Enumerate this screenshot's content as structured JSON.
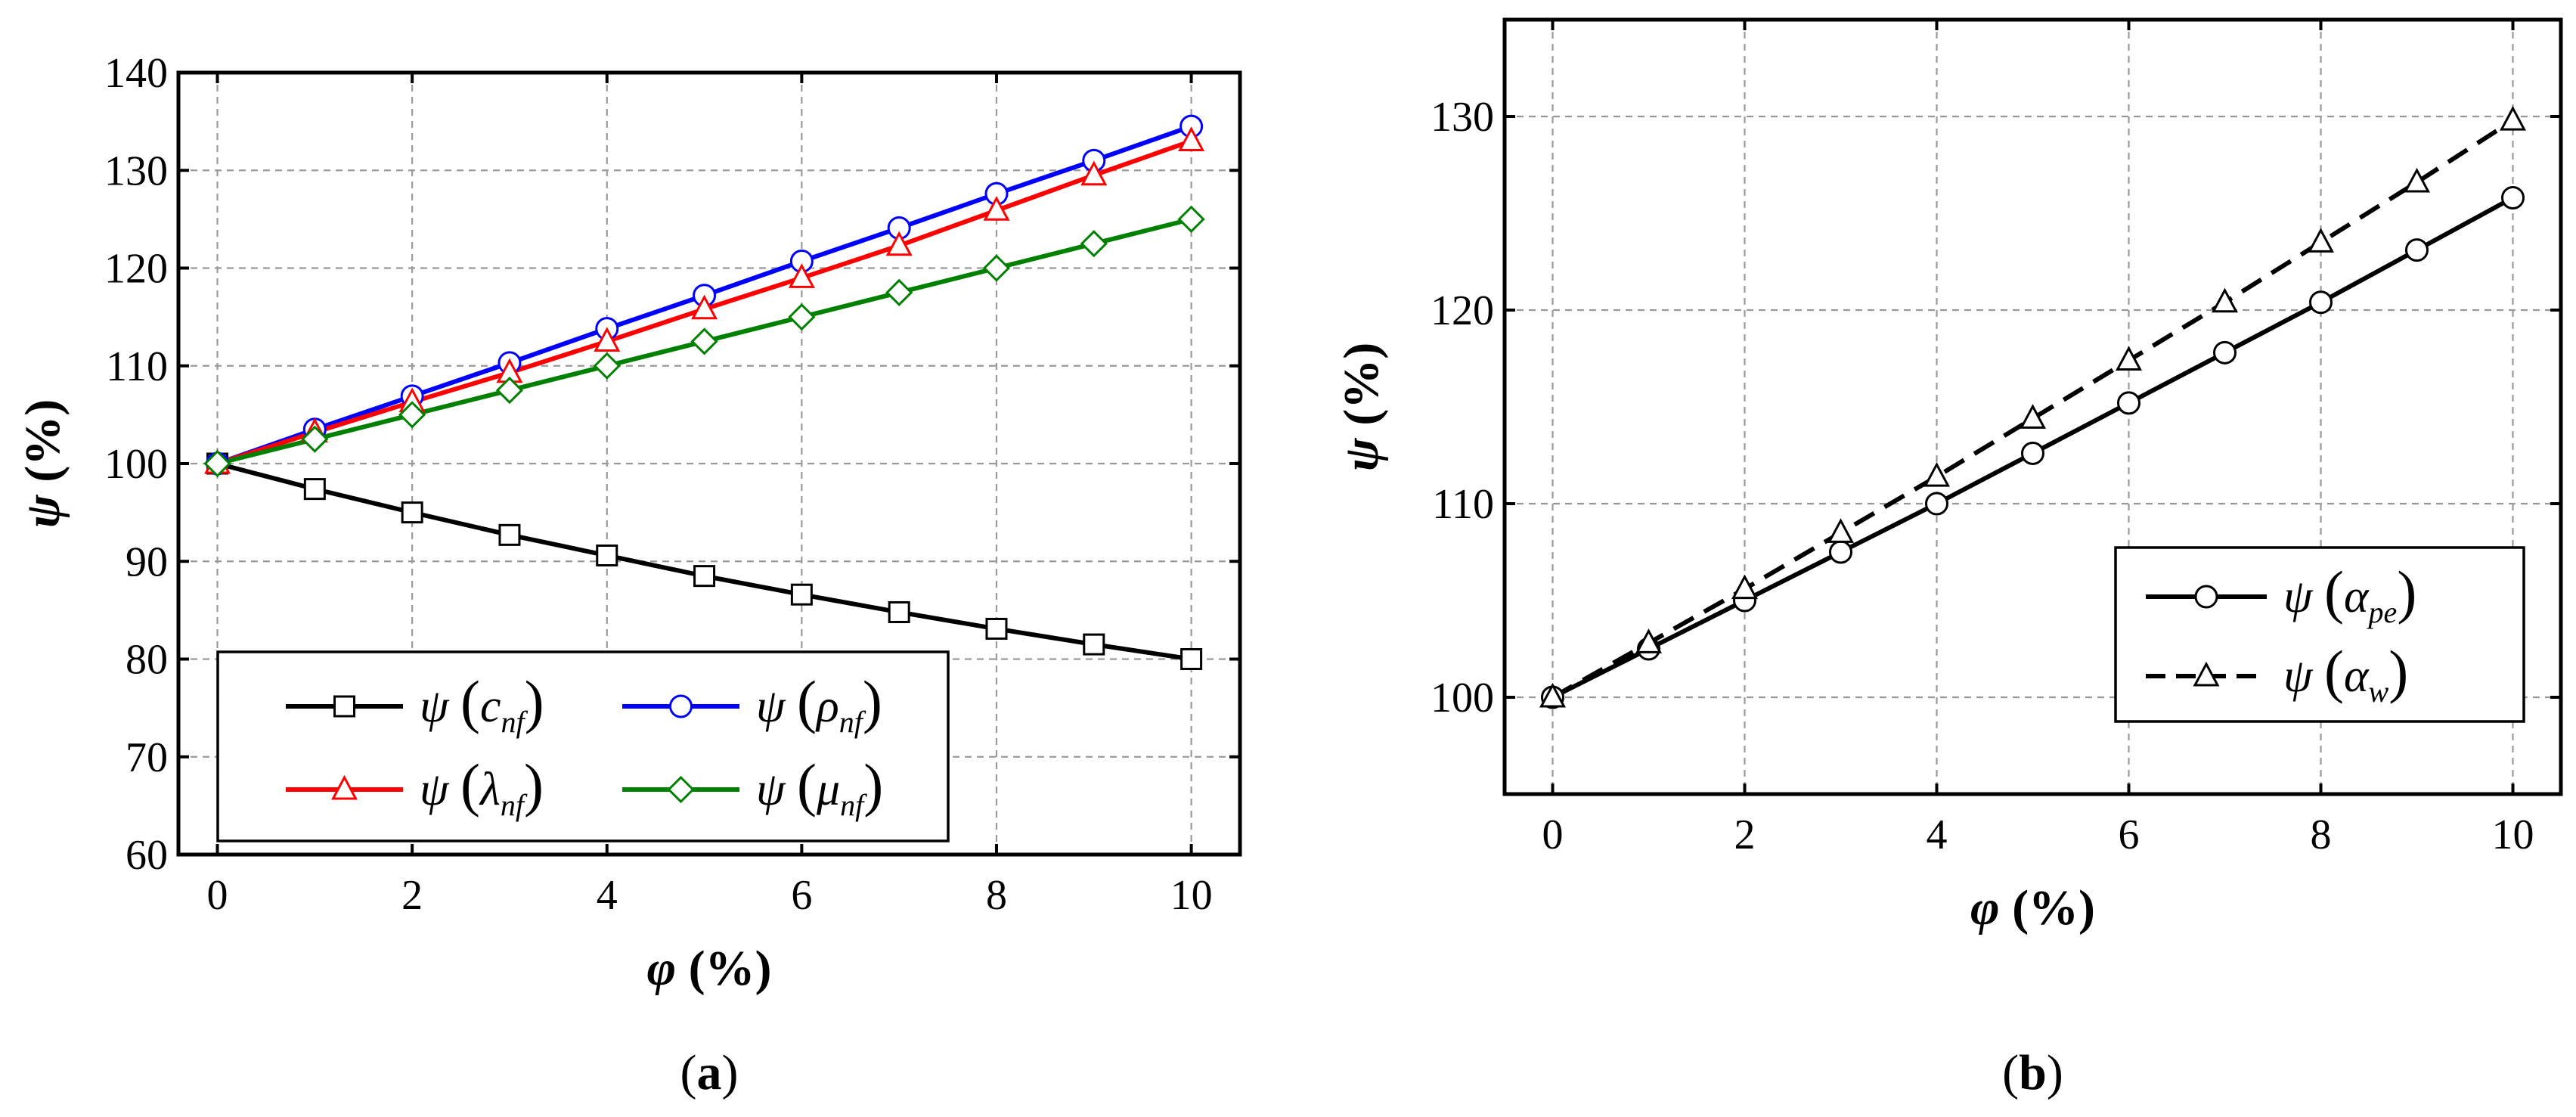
{
  "chart_data": [
    {
      "type": "line",
      "panel_label": "(a)",
      "panel_label_letter": "a",
      "xlabel": "φ",
      "xlabel_unit": "(%)",
      "ylabel": "ψ",
      "ylabel_unit": "(%)",
      "xlim": [
        -0.4,
        10.5
      ],
      "ylim": [
        60,
        140
      ],
      "x_ticks": [
        0,
        2,
        4,
        6,
        8,
        10
      ],
      "y_ticks": [
        60,
        70,
        80,
        90,
        100,
        110,
        120,
        130,
        140
      ],
      "grid": true,
      "legend_position": "bottom-left",
      "x": [
        0,
        1,
        2,
        3,
        4,
        5,
        6,
        7,
        8,
        9,
        10
      ],
      "series": [
        {
          "name": "ψ(c_nf)",
          "func": "ψ",
          "symbol": "c",
          "sub": "nf",
          "color": "#000000",
          "marker": "square",
          "values": [
            100,
            97.4,
            95.0,
            92.7,
            90.6,
            88.5,
            86.6,
            84.8,
            83.1,
            81.5,
            80.0
          ]
        },
        {
          "name": "ψ(ρ_nf)",
          "func": "ψ",
          "symbol": "ρ",
          "sub": "nf",
          "color": "#0000ff",
          "marker": "circle",
          "values": [
            100,
            103.5,
            106.9,
            110.3,
            113.8,
            117.2,
            120.7,
            124.1,
            127.6,
            131.0,
            134.5
          ]
        },
        {
          "name": "ψ(λ_nf)",
          "func": "ψ",
          "symbol": "λ",
          "sub": "nf",
          "color": "#ff0000",
          "marker": "triangle",
          "values": [
            100,
            103.2,
            106.3,
            109.3,
            112.5,
            115.8,
            119.0,
            122.3,
            125.9,
            129.5,
            133.0
          ]
        },
        {
          "name": "ψ(μ_nf)",
          "func": "ψ",
          "symbol": "μ",
          "sub": "nf",
          "color": "#008000",
          "marker": "diamond",
          "values": [
            100,
            102.5,
            105.0,
            107.5,
            110.0,
            112.5,
            115.0,
            117.5,
            120.0,
            122.5,
            125.0
          ]
        }
      ]
    },
    {
      "type": "line",
      "panel_label": "(b)",
      "panel_label_letter": "b",
      "xlabel": "φ",
      "xlabel_unit": "(%)",
      "ylabel": "ψ",
      "ylabel_unit": "(%)",
      "xlim": [
        -0.5,
        10.5
      ],
      "ylim": [
        95,
        135
      ],
      "x_ticks": [
        0,
        2,
        4,
        6,
        8,
        10
      ],
      "y_ticks": [
        100,
        110,
        120,
        130
      ],
      "grid": true,
      "legend_position": "right-center",
      "x": [
        0,
        1,
        2,
        3,
        4,
        5,
        6,
        7,
        8,
        9,
        10
      ],
      "series": [
        {
          "name": "ψ(α_pe)",
          "func": "ψ",
          "symbol": "α",
          "sub": "pe",
          "color": "#000000",
          "marker": "circle",
          "line": "solid",
          "values": [
            100,
            102.5,
            105.0,
            107.5,
            110.0,
            112.6,
            115.2,
            117.8,
            120.4,
            123.1,
            125.8
          ]
        },
        {
          "name": "ψ(α_w)",
          "func": "ψ",
          "symbol": "α",
          "sub": "w",
          "color": "#000000",
          "marker": "triangle",
          "line": "dashed",
          "values": [
            100,
            102.8,
            105.6,
            108.5,
            111.4,
            114.4,
            117.4,
            120.4,
            123.5,
            126.6,
            129.8
          ]
        }
      ]
    }
  ]
}
